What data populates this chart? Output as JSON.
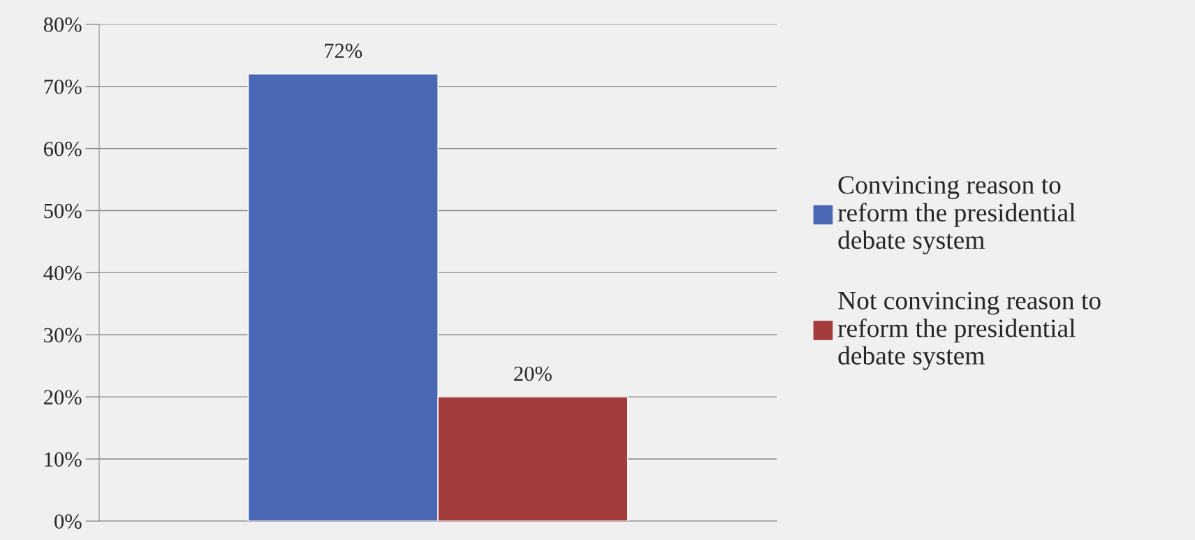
{
  "chart_data": {
    "type": "bar",
    "categories": [
      null
    ],
    "series": [
      {
        "name": "Convincing reason to reform the presidential debate system",
        "color": "#4a68b4",
        "values": [
          72
        ],
        "value_labels": [
          "72%"
        ]
      },
      {
        "name": "Not convincing reason to reform the presidential debate system",
        "color": "#a23d3c",
        "values": [
          20
        ],
        "value_labels": [
          "20%"
        ]
      }
    ],
    "ylim": [
      0,
      80
    ],
    "yticks": [
      {
        "value": 0,
        "label": "0%"
      },
      {
        "value": 10,
        "label": "10%"
      },
      {
        "value": 20,
        "label": "20%"
      },
      {
        "value": 30,
        "label": "30%"
      },
      {
        "value": 40,
        "label": "40%"
      },
      {
        "value": 50,
        "label": "50%"
      },
      {
        "value": 60,
        "label": "60%"
      },
      {
        "value": 70,
        "label": "70%"
      },
      {
        "value": 80,
        "label": "80%"
      }
    ],
    "grid": "y",
    "legend": "right"
  }
}
